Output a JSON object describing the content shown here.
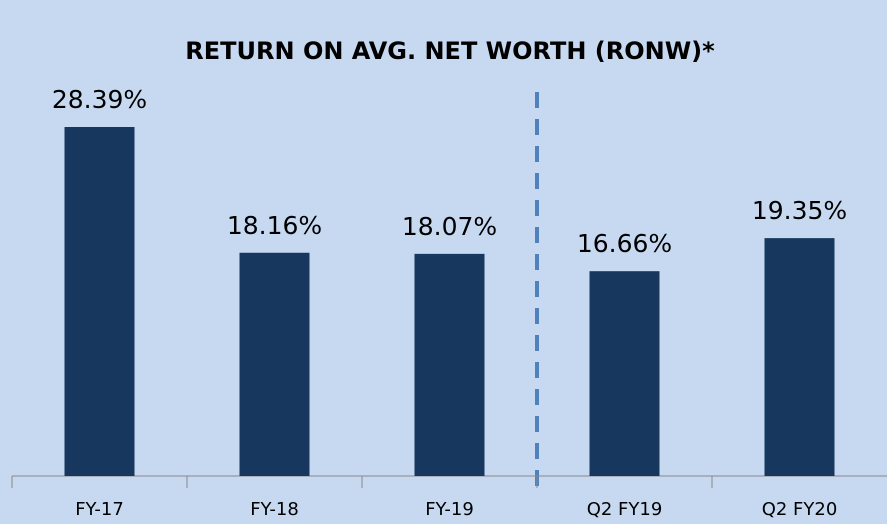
{
  "chart_data": {
    "type": "bar",
    "title": "RETURN ON AVG. NET WORTH (RONW)*",
    "categories": [
      "FY-17",
      "FY-18",
      "FY-19",
      "Q2 FY19",
      "Q2 FY20"
    ],
    "values": [
      28.39,
      18.16,
      18.07,
      16.66,
      19.35
    ],
    "value_labels": [
      "28.39%",
      "18.16%",
      "18.07%",
      "16.66%",
      "19.35%"
    ],
    "color": "#17375e"
  }
}
